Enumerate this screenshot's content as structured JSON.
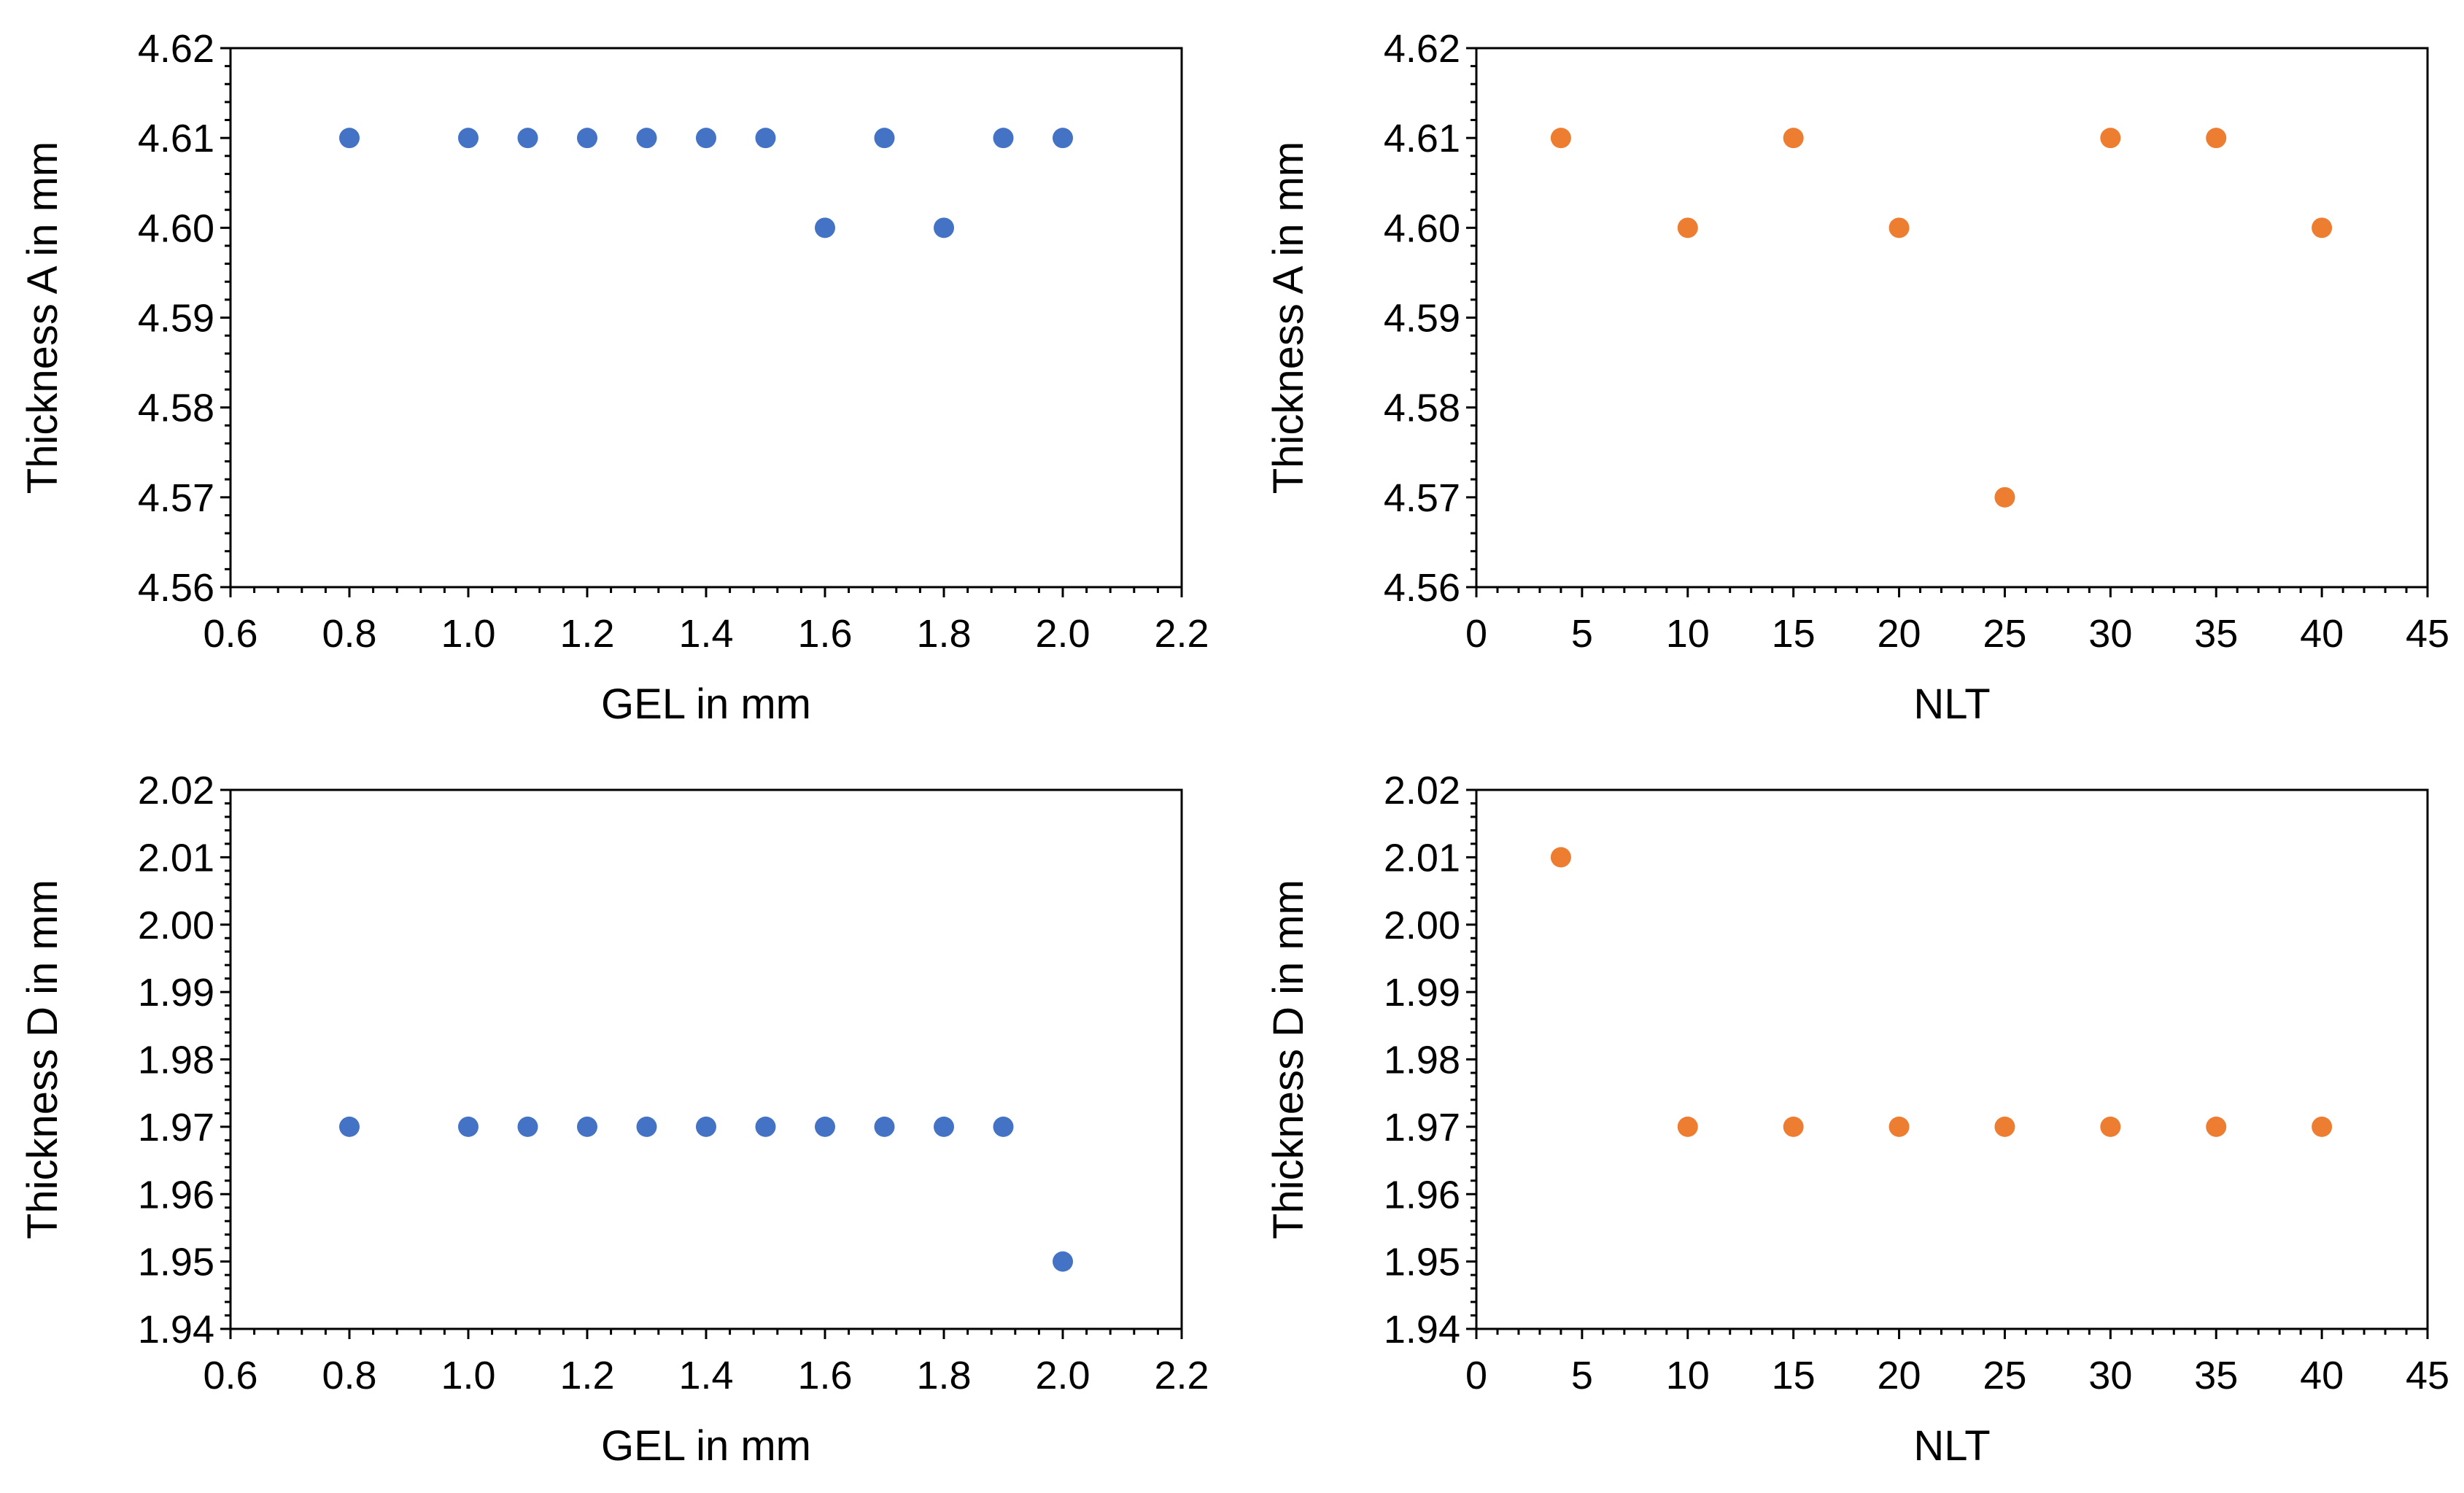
{
  "chart_data": [
    {
      "id": "gel-vs-thickness-a",
      "type": "scatter",
      "xlabel": "GEL in mm",
      "ylabel": "Thickness A in mm",
      "xlim": [
        0.6,
        2.2
      ],
      "ylim": [
        4.56,
        4.62
      ],
      "xticks": [
        "0.6",
        "0.8",
        "1.0",
        "1.2",
        "1.4",
        "1.6",
        "1.8",
        "2.0",
        "2.2"
      ],
      "yticks": [
        "4.56",
        "4.57",
        "4.58",
        "4.59",
        "4.60",
        "4.61",
        "4.62"
      ],
      "grid": false,
      "series": [
        {
          "name": "GEL",
          "color": "#4472C4",
          "x": [
            0.8,
            1.0,
            1.1,
            1.2,
            1.3,
            1.4,
            1.5,
            1.6,
            1.7,
            1.8,
            1.9,
            2.0
          ],
          "y": [
            4.61,
            4.61,
            4.61,
            4.61,
            4.61,
            4.61,
            4.61,
            4.6,
            4.61,
            4.6,
            4.61,
            4.61
          ]
        }
      ]
    },
    {
      "id": "nlt-vs-thickness-a",
      "type": "scatter",
      "xlabel": "NLT",
      "ylabel": "Thickness A in mm",
      "xlim": [
        0,
        45
      ],
      "ylim": [
        4.56,
        4.62
      ],
      "xticks": [
        "0",
        "5",
        "10",
        "15",
        "20",
        "25",
        "30",
        "35",
        "40",
        "45"
      ],
      "yticks": [
        "4.56",
        "4.57",
        "4.58",
        "4.59",
        "4.60",
        "4.61",
        "4.62"
      ],
      "grid": false,
      "series": [
        {
          "name": "NLT",
          "color": "#ED7D31",
          "x": [
            4,
            10,
            15,
            20,
            25,
            30,
            35,
            40
          ],
          "y": [
            4.61,
            4.6,
            4.61,
            4.6,
            4.57,
            4.61,
            4.61,
            4.6
          ]
        }
      ]
    },
    {
      "id": "gel-vs-thickness-d",
      "type": "scatter",
      "xlabel": "GEL in mm",
      "ylabel": "Thickness D in mm",
      "xlim": [
        0.6,
        2.2
      ],
      "ylim": [
        1.94,
        2.02
      ],
      "xticks": [
        "0.6",
        "0.8",
        "1.0",
        "1.2",
        "1.4",
        "1.6",
        "1.8",
        "2.0",
        "2.2"
      ],
      "yticks": [
        "1.94",
        "1.95",
        "1.96",
        "1.97",
        "1.98",
        "1.99",
        "2.00",
        "2.01",
        "2.02"
      ],
      "grid": false,
      "series": [
        {
          "name": "GEL",
          "color": "#4472C4",
          "x": [
            0.8,
            1.0,
            1.1,
            1.2,
            1.3,
            1.4,
            1.5,
            1.6,
            1.7,
            1.8,
            1.9,
            2.0
          ],
          "y": [
            1.97,
            1.97,
            1.97,
            1.97,
            1.97,
            1.97,
            1.97,
            1.97,
            1.97,
            1.97,
            1.97,
            1.95
          ]
        }
      ]
    },
    {
      "id": "nlt-vs-thickness-d",
      "type": "scatter",
      "xlabel": "NLT",
      "ylabel": "Thickness D in mm",
      "xlim": [
        0,
        45
      ],
      "ylim": [
        1.94,
        2.02
      ],
      "xticks": [
        "0",
        "5",
        "10",
        "15",
        "20",
        "25",
        "30",
        "35",
        "40",
        "45"
      ],
      "yticks": [
        "1.94",
        "1.95",
        "1.96",
        "1.97",
        "1.98",
        "1.99",
        "2.00",
        "2.01",
        "2.02"
      ],
      "grid": false,
      "series": [
        {
          "name": "NLT",
          "color": "#ED7D31",
          "x": [
            4,
            10,
            15,
            20,
            25,
            30,
            35,
            40
          ],
          "y": [
            2.01,
            1.97,
            1.97,
            1.97,
            1.97,
            1.97,
            1.97,
            1.97
          ]
        }
      ]
    }
  ]
}
